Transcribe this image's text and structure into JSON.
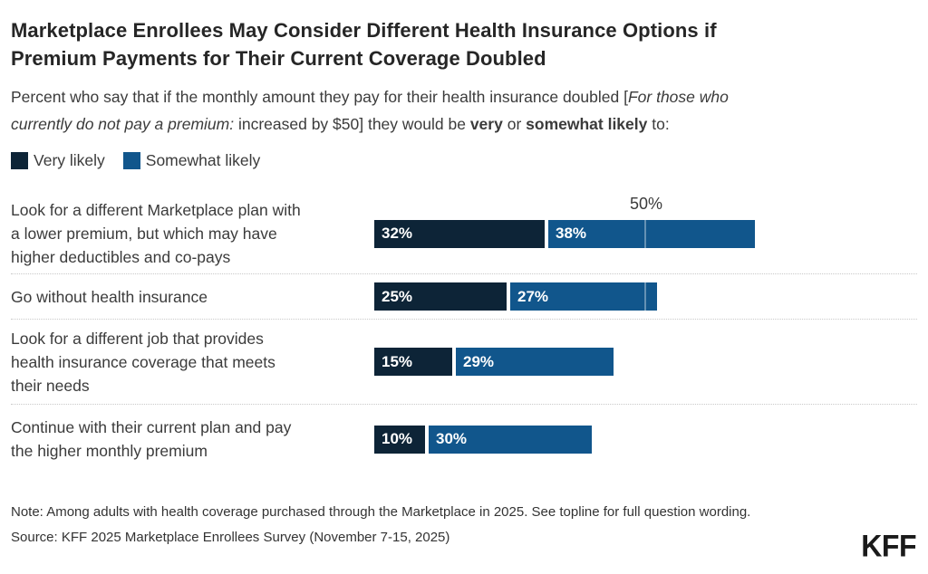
{
  "header": {
    "title": "Marketplace Enrollees May Consider Different Health Insurance Options if\nPremium Payments for Their Current Coverage Doubled",
    "subtitle_segments": [
      {
        "text": "Percent who say that if the monthly amount they pay for their health insurance doubled [",
        "style": "normal"
      },
      {
        "text": "For those who\ncurrently do not pay a premium:",
        "style": "italic"
      },
      {
        "text": " increased by $50] they would be ",
        "style": "normal"
      },
      {
        "text": "very",
        "style": "bold"
      },
      {
        "text": " or ",
        "style": "normal"
      },
      {
        "text": "somewhat likely",
        "style": "bold"
      },
      {
        "text": " to:",
        "style": "normal"
      }
    ]
  },
  "legend": [
    {
      "label": "Very likely",
      "color": "#0d2437"
    },
    {
      "label": "Somewhat likely",
      "color": "#11568c"
    }
  ],
  "chart_data": {
    "type": "bar",
    "orientation": "horizontal",
    "stacked": true,
    "unit": "percent",
    "title": "Marketplace Enrollees May Consider Different Health Insurance Options if Premium Payments for Their Current Coverage Doubled",
    "categories": [
      "Look for a different Marketplace plan with\na lower premium, but which may have\nhigher deductibles and co-pays",
      "Go without health insurance",
      "Look for a different job that provides\nhealth insurance coverage that meets\ntheir needs",
      "Continue with their current plan and pay\nthe higher monthly premium"
    ],
    "series": [
      {
        "name": "Very likely",
        "color": "#0d2437",
        "values": [
          32,
          25,
          15,
          10
        ]
      },
      {
        "name": "Somewhat likely",
        "color": "#11568c",
        "values": [
          38,
          27,
          29,
          30
        ]
      }
    ],
    "totals": [
      70,
      52,
      44,
      40
    ],
    "value_label_format": "{v}%",
    "xlim": [
      0,
      100
    ],
    "gridline_at": 50,
    "axis_annotation": {
      "label": "50%",
      "value": 50,
      "row": 0
    },
    "legend_position": "top-left",
    "grid": "single 50% gridline overlaying bars; dotted row separators"
  },
  "footer": {
    "note": "Note: Among adults with health coverage purchased through the Marketplace in 2025. See topline for full question wording.",
    "source": "Source: KFF 2025 Marketplace Enrollees Survey (November 7-15, 2025)",
    "logo": "KFF"
  }
}
